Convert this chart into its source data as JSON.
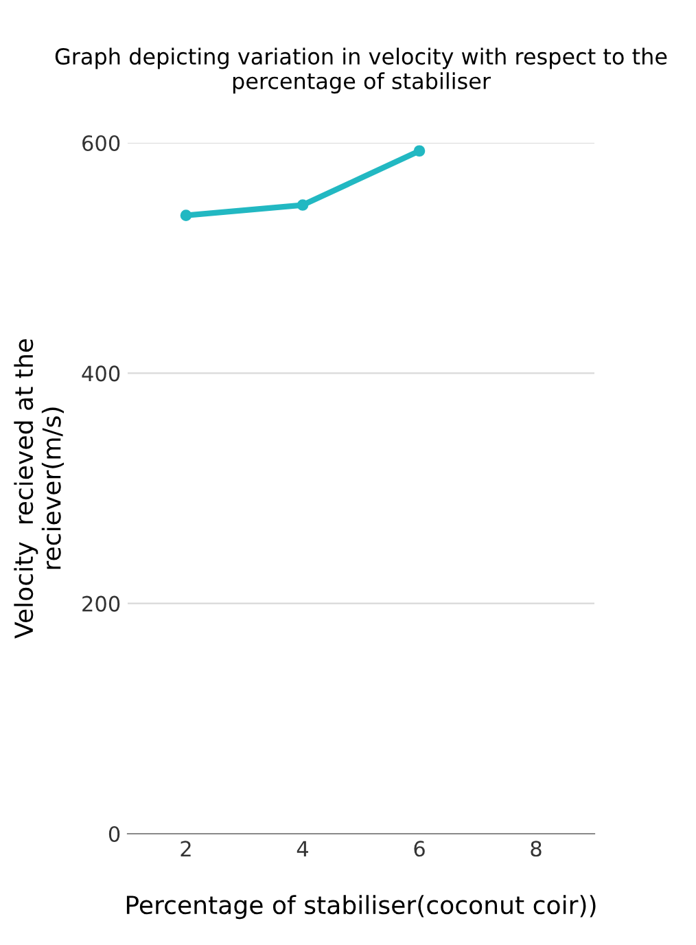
{
  "chart_data": {
    "type": "line",
    "title": "Graph depicting variation in velocity with respect to the percentage of stabiliser",
    "xlabel": "Percentage of stabiliser(coconut coir))",
    "ylabel": "Velocity  recieved at the\nreciever(m/s)",
    "categories": [
      "2",
      "4",
      "6",
      "8"
    ],
    "series": [
      {
        "color": "#22b8c2",
        "values": [
          537,
          546,
          593,
          null
        ]
      }
    ],
    "ylim": [
      0,
      600
    ],
    "yticks": [
      0,
      200,
      400,
      600
    ],
    "grid": "y",
    "marker": "circle",
    "line_style": "solid"
  }
}
